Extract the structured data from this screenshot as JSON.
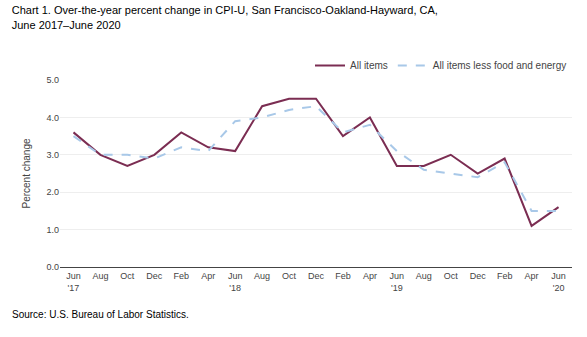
{
  "chart_data": {
    "type": "line",
    "title": "Chart 1. Over-the-year percent change in CPI-U, San Francisco-Oakland-Hayward, CA,\nJune 2017–June 2020",
    "y_label": "Percent change",
    "annotations": [
      "Source: U.S. Bureau of Labor Statistics."
    ],
    "categories": [
      "Jun\n'17",
      "Aug",
      "Oct",
      "Dec",
      "Feb",
      "Apr",
      "Jun\n'18",
      "Aug",
      "Oct",
      "Dec",
      "Feb",
      "Apr",
      "Jun\n'19",
      "Aug",
      "Oct",
      "Dec",
      "Feb",
      "Apr",
      "Jun\n'20"
    ],
    "series": [
      {
        "name": "All items",
        "color": "#7b2d52",
        "line_style": "solid",
        "values": [
          3.6,
          3.0,
          2.7,
          3.0,
          3.6,
          3.2,
          3.1,
          4.3,
          4.5,
          4.5,
          3.5,
          4.0,
          2.7,
          2.7,
          3.0,
          2.5,
          2.9,
          1.1,
          1.6
        ]
      },
      {
        "name": "All items less food and energy",
        "color": "#a8c8e8",
        "line_style": "dashed",
        "values": [
          3.5,
          3.0,
          3.0,
          2.9,
          3.2,
          3.1,
          3.9,
          4.0,
          4.2,
          4.3,
          3.6,
          3.8,
          3.1,
          2.6,
          2.5,
          2.4,
          2.8,
          1.5,
          1.5
        ]
      }
    ],
    "ylim": [
      0.0,
      5.0
    ],
    "yticks": [
      {
        "value": 0,
        "label": "0.0"
      },
      {
        "value": 1,
        "label": "1.0"
      },
      {
        "value": 2,
        "label": "2.0"
      },
      {
        "value": 3,
        "label": "3.0"
      },
      {
        "value": 4,
        "label": "4.0"
      },
      {
        "value": 5,
        "label": "5.0"
      }
    ],
    "grid": true,
    "legend": "upper right"
  }
}
